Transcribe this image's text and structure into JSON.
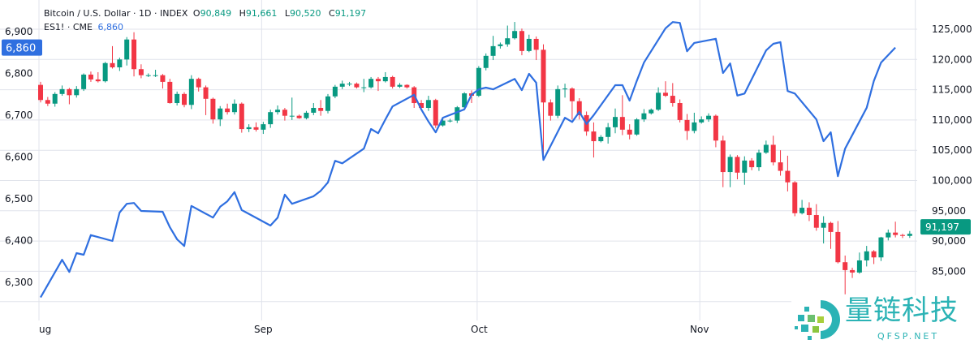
{
  "legend": {
    "symbol": "Bitcoin / U.S. Dollar · 1D · INDEX",
    "o_label": "O",
    "o": "90,849",
    "h_label": "H",
    "h": "91,661",
    "l_label": "L",
    "l": "90,520",
    "c_label": "C",
    "c": "91,197",
    "es_symbol": "ES1! · CME",
    "es_value": "6,860"
  },
  "logo": {
    "text": "量链科技",
    "sub": "QFSP.NET"
  },
  "colors": {
    "up": "#089981",
    "down": "#f23645",
    "es_line": "#2f6fe0",
    "grid": "#e0e3eb"
  },
  "chart_data": {
    "type": "candlestick+line",
    "x_ticks": [
      "ug",
      "Sep",
      "Oct",
      "Nov"
    ],
    "right_axis": {
      "ticks": [
        "125,000",
        "120,000",
        "115,000",
        "110,000",
        "105,000",
        "100,000",
        "95,000",
        "90,000",
        "85,000"
      ],
      "range": [
        80000,
        125000
      ],
      "last_price_label": "91,197"
    },
    "left_axis": {
      "ticks": [
        "6,900",
        "6,800",
        "6,700",
        "6,600",
        "6,500",
        "6,400",
        "6,300"
      ],
      "range": [
        6260,
        6920
      ],
      "last_value_label": "6,860"
    },
    "grid": true,
    "btc_candles": [
      [
        "Aug 1",
        115800,
        116300,
        112900,
        113300
      ],
      [
        "Aug 2",
        113300,
        113800,
        112300,
        112700
      ],
      [
        "Aug 3",
        112700,
        114600,
        112200,
        114300
      ],
      [
        "Aug 4",
        114300,
        115700,
        114000,
        115100
      ],
      [
        "Aug 5",
        115100,
        115300,
        112600,
        114100
      ],
      [
        "Aug 6",
        114100,
        115600,
        113700,
        115100
      ],
      [
        "Aug 7",
        115100,
        117700,
        114800,
        117500
      ],
      [
        "Aug 8",
        117500,
        118000,
        116300,
        116700
      ],
      [
        "Aug 9",
        116700,
        117900,
        116200,
        116400
      ],
      [
        "Aug 10",
        116400,
        119600,
        116200,
        119400
      ],
      [
        "Aug 11",
        119400,
        122200,
        118500,
        118700
      ],
      [
        "Aug 12",
        118700,
        120300,
        118100,
        120000
      ],
      [
        "Aug 13",
        120000,
        123700,
        119000,
        123300
      ],
      [
        "Aug 14",
        123300,
        124500,
        117200,
        118400
      ],
      [
        "Aug 15",
        118400,
        119200,
        116900,
        117400
      ],
      [
        "Aug 16",
        117400,
        117700,
        117100,
        117400
      ],
      [
        "Aug 17",
        117400,
        118300,
        117100,
        117400
      ],
      [
        "Aug 18",
        117400,
        117600,
        115200,
        116300
      ],
      [
        "Aug 19",
        116300,
        116800,
        112700,
        112800
      ],
      [
        "Aug 20",
        112800,
        114700,
        112400,
        114300
      ],
      [
        "Aug 21",
        114300,
        114600,
        112100,
        112500
      ],
      [
        "Aug 22",
        112500,
        117400,
        111800,
        116800
      ],
      [
        "Aug 23",
        116800,
        117000,
        114700,
        115400
      ],
      [
        "Aug 24",
        115400,
        115700,
        110800,
        113500
      ],
      [
        "Aug 25",
        113500,
        113700,
        109400,
        110100
      ],
      [
        "Aug 26",
        110100,
        112300,
        109000,
        111900
      ],
      [
        "Aug 27",
        111900,
        112700,
        110900,
        111300
      ],
      [
        "Aug 28",
        111300,
        113400,
        110900,
        112700
      ],
      [
        "Aug 29",
        112700,
        112900,
        107900,
        108500
      ],
      [
        "Aug 30",
        108500,
        109300,
        108000,
        108800
      ],
      [
        "Aug 31",
        108800,
        109600,
        108100,
        108400
      ],
      [
        "Sep 1",
        108400,
        109700,
        107700,
        109300
      ],
      [
        "Sep 2",
        109300,
        111700,
        108700,
        111300
      ],
      [
        "Sep 3",
        111300,
        112400,
        110900,
        111700
      ],
      [
        "Sep 4",
        111700,
        112000,
        109900,
        110700
      ],
      [
        "Sep 5",
        110700,
        113700,
        110000,
        110700
      ],
      [
        "Sep 6",
        110700,
        110900,
        110200,
        110300
      ],
      [
        "Sep 7",
        110300,
        111500,
        110100,
        111200
      ],
      [
        "Sep 8",
        111200,
        112800,
        110800,
        112000
      ],
      [
        "Sep 9",
        112000,
        113300,
        110700,
        111500
      ],
      [
        "Sep 10",
        111500,
        114300,
        111100,
        113900
      ],
      [
        "Sep 11",
        113900,
        115800,
        113600,
        115500
      ],
      [
        "Sep 12",
        115500,
        116500,
        115100,
        116000
      ],
      [
        "Sep 13",
        116000,
        116300,
        115600,
        116000
      ],
      [
        "Sep 14",
        116000,
        116200,
        115200,
        115400
      ],
      [
        "Sep 15",
        115400,
        116800,
        114600,
        115400
      ],
      [
        "Sep 16",
        115400,
        117100,
        115200,
        116800
      ],
      [
        "Sep 17",
        116800,
        117100,
        114800,
        116400
      ],
      [
        "Sep 18",
        116400,
        117900,
        116200,
        117100
      ],
      [
        "Sep 19",
        117100,
        117300,
        115200,
        115500
      ],
      [
        "Sep 20",
        115500,
        116100,
        115300,
        115800
      ],
      [
        "Sep 21",
        115800,
        115900,
        115200,
        115400
      ],
      [
        "Sep 22",
        115400,
        115600,
        112000,
        112800
      ],
      [
        "Sep 23",
        112800,
        113300,
        111600,
        112000
      ],
      [
        "Sep 24",
        112000,
        114000,
        111500,
        113300
      ],
      [
        "Sep 25",
        113300,
        113500,
        108700,
        109100
      ],
      [
        "Sep 26",
        109100,
        110300,
        108900,
        109900
      ],
      [
        "Sep 27",
        109900,
        110200,
        109600,
        109900
      ],
      [
        "Sep 28",
        109900,
        112300,
        109500,
        112100
      ],
      [
        "Sep 29",
        112100,
        114600,
        111700,
        114400
      ],
      [
        "Sep 30",
        114400,
        114900,
        112800,
        114000
      ],
      [
        "Oct 1",
        114000,
        118900,
        113800,
        118600
      ],
      [
        "Oct 2",
        118600,
        121000,
        118200,
        120600
      ],
      [
        "Oct 3",
        120600,
        123900,
        119900,
        122200
      ],
      [
        "Oct 4",
        122200,
        122800,
        121800,
        122500
      ],
      [
        "Oct 5",
        122500,
        125600,
        122100,
        123500
      ],
      [
        "Oct 6",
        123500,
        126200,
        123300,
        124700
      ],
      [
        "Oct 7",
        124700,
        125100,
        120700,
        121400
      ],
      [
        "Oct 8",
        121400,
        124100,
        121200,
        123400
      ],
      [
        "Oct 9",
        123400,
        123800,
        119900,
        121600
      ],
      [
        "Oct 10",
        121600,
        122500,
        103700,
        112900
      ],
      [
        "Oct 11",
        112900,
        113400,
        109900,
        110700
      ],
      [
        "Oct 12",
        110700,
        115700,
        110300,
        115100
      ],
      [
        "Oct 13",
        115100,
        116000,
        113700,
        115200
      ],
      [
        "Oct 14",
        115200,
        115400,
        110100,
        113100
      ],
      [
        "Oct 15",
        113100,
        113600,
        110100,
        110800
      ],
      [
        "Oct 16",
        110800,
        111400,
        107400,
        108100
      ],
      [
        "Oct 17",
        108100,
        109600,
        103800,
        106500
      ],
      [
        "Oct 18",
        106500,
        107500,
        106300,
        107200
      ],
      [
        "Oct 19",
        107200,
        109500,
        106100,
        108800
      ],
      [
        "Oct 20",
        108800,
        111900,
        107800,
        110500
      ],
      [
        "Oct 21",
        110500,
        114100,
        107500,
        108400
      ],
      [
        "Oct 22",
        108400,
        109300,
        106800,
        107600
      ],
      [
        "Oct 23",
        107600,
        110300,
        107400,
        110100
      ],
      [
        "Oct 24",
        110100,
        111800,
        109700,
        111100
      ],
      [
        "Oct 25",
        111100,
        111900,
        110900,
        111700
      ],
      [
        "Oct 26",
        111700,
        115400,
        111500,
        114500
      ],
      [
        "Oct 27",
        114500,
        116400,
        113800,
        114000
      ],
      [
        "Oct 28",
        114000,
        116100,
        112200,
        112800
      ],
      [
        "Oct 29",
        112800,
        113400,
        109600,
        110000
      ],
      [
        "Oct 30",
        110000,
        111000,
        106700,
        108200
      ],
      [
        "Oct 31",
        108200,
        111200,
        107800,
        109600
      ],
      [
        "Nov 1",
        109600,
        110600,
        109400,
        110100
      ],
      [
        "Nov 2",
        110100,
        111100,
        109700,
        110700
      ],
      [
        "Nov 3",
        110700,
        110900,
        105500,
        106600
      ],
      [
        "Nov 4",
        106600,
        107400,
        98900,
        101400
      ],
      [
        "Nov 5",
        101400,
        104300,
        98900,
        103900
      ],
      [
        "Nov 6",
        103900,
        104200,
        100200,
        101300
      ],
      [
        "Nov 7",
        101300,
        104000,
        99300,
        103300
      ],
      [
        "Nov 8",
        103300,
        103700,
        101700,
        102200
      ],
      [
        "Nov 9",
        102200,
        105100,
        101600,
        104600
      ],
      [
        "Nov 10",
        104600,
        106600,
        104400,
        105900
      ],
      [
        "Nov 11",
        105900,
        107400,
        102500,
        103000
      ],
      [
        "Nov 12",
        103000,
        105000,
        100800,
        101600
      ],
      [
        "Nov 13",
        101600,
        104100,
        98200,
        99700
      ],
      [
        "Nov 14",
        99700,
        99900,
        94100,
        94600
      ],
      [
        "Nov 15",
        94600,
        96800,
        94400,
        95500
      ],
      [
        "Nov 16",
        95500,
        96400,
        93300,
        94300
      ],
      [
        "Nov 17",
        94300,
        96100,
        91700,
        92200
      ],
      [
        "Nov 18",
        92200,
        94100,
        89600,
        93000
      ],
      [
        "Nov 19",
        93000,
        93200,
        88700,
        91500
      ],
      [
        "Nov 20",
        91500,
        93300,
        86300,
        86500
      ],
      [
        "Nov 21",
        86500,
        87600,
        81200,
        85200
      ],
      [
        "Nov 22",
        85200,
        85600,
        83900,
        84800
      ],
      [
        "Nov 23",
        84800,
        88100,
        84600,
        86800
      ],
      [
        "Nov 24",
        86800,
        89200,
        85800,
        88300
      ],
      [
        "Nov 25",
        88300,
        88500,
        86200,
        87300
      ],
      [
        "Nov 26",
        87300,
        90700,
        86700,
        90600
      ],
      [
        "Nov 27",
        90600,
        91900,
        90100,
        91400
      ],
      [
        "Nov 28",
        91400,
        93200,
        90600,
        91000
      ],
      [
        "Nov 29",
        91000,
        91200,
        90500,
        90849
      ],
      [
        "Nov 30",
        90849,
        91661,
        90520,
        91197
      ]
    ],
    "es_line": [
      [
        "Aug 1",
        6262
      ],
      [
        "Aug 4",
        6352
      ],
      [
        "Aug 5",
        6323
      ],
      [
        "Aug 6",
        6368
      ],
      [
        "Aug 7",
        6364
      ],
      [
        "Aug 8",
        6411
      ],
      [
        "Aug 11",
        6397
      ],
      [
        "Aug 12",
        6465
      ],
      [
        "Aug 13",
        6486
      ],
      [
        "Aug 14",
        6488
      ],
      [
        "Aug 15",
        6469
      ],
      [
        "Aug 18",
        6467
      ],
      [
        "Aug 19",
        6430
      ],
      [
        "Aug 20",
        6401
      ],
      [
        "Aug 21",
        6385
      ],
      [
        "Aug 22",
        6481
      ],
      [
        "Aug 25",
        6453
      ],
      [
        "Aug 26",
        6479
      ],
      [
        "Aug 27",
        6492
      ],
      [
        "Aug 28",
        6514
      ],
      [
        "Aug 29",
        6471
      ],
      [
        "Sep 2",
        6434
      ],
      [
        "Sep 3",
        6453
      ],
      [
        "Sep 4",
        6508
      ],
      [
        "Sep 5",
        6486
      ],
      [
        "Sep 8",
        6504
      ],
      [
        "Sep 9",
        6517
      ],
      [
        "Sep 10",
        6537
      ],
      [
        "Sep 11",
        6589
      ],
      [
        "Sep 12",
        6583
      ],
      [
        "Sep 15",
        6618
      ],
      [
        "Sep 16",
        6665
      ],
      [
        "Sep 17",
        6655
      ],
      [
        "Sep 18",
        6688
      ],
      [
        "Sep 19",
        6719
      ],
      [
        "Sep 22",
        6747
      ],
      [
        "Sep 23",
        6712
      ],
      [
        "Sep 24",
        6683
      ],
      [
        "Sep 25",
        6657
      ],
      [
        "Sep 26",
        6692
      ],
      [
        "Sep 29",
        6712
      ],
      [
        "Sep 30",
        6747
      ],
      [
        "Oct 1",
        6760
      ],
      [
        "Oct 2",
        6764
      ],
      [
        "Oct 3",
        6760
      ],
      [
        "Oct 6",
        6785
      ],
      [
        "Oct 7",
        6758
      ],
      [
        "Oct 8",
        6797
      ],
      [
        "Oct 9",
        6776
      ],
      [
        "Oct 10",
        6591
      ],
      [
        "Oct 13",
        6692
      ],
      [
        "Oct 14",
        6682
      ],
      [
        "Oct 15",
        6706
      ],
      [
        "Oct 16",
        6677
      ],
      [
        "Oct 17",
        6698
      ],
      [
        "Oct 20",
        6770
      ],
      [
        "Oct 21",
        6770
      ],
      [
        "Oct 22",
        6733
      ],
      [
        "Oct 23",
        6780
      ],
      [
        "Oct 24",
        6824
      ],
      [
        "Oct 27",
        6906
      ],
      [
        "Oct 28",
        6921
      ],
      [
        "Oct 29",
        6919
      ],
      [
        "Oct 30",
        6851
      ],
      [
        "Oct 31",
        6871
      ],
      [
        "Nov 3",
        6881
      ],
      [
        "Nov 4",
        6799
      ],
      [
        "Nov 5",
        6822
      ],
      [
        "Nov 6",
        6745
      ],
      [
        "Nov 7",
        6750
      ],
      [
        "Nov 10",
        6853
      ],
      [
        "Nov 11",
        6869
      ],
      [
        "Nov 12",
        6873
      ],
      [
        "Nov 13",
        6756
      ],
      [
        "Nov 14",
        6750
      ],
      [
        "Nov 17",
        6688
      ],
      [
        "Nov 18",
        6636
      ],
      [
        "Nov 19",
        6657
      ],
      [
        "Nov 20",
        6552
      ],
      [
        "Nov 21",
        6618
      ],
      [
        "Nov 24",
        6716
      ],
      [
        "Nov 25",
        6780
      ],
      [
        "Nov 26",
        6824
      ],
      [
        "Nov 28",
        6860
      ]
    ]
  }
}
